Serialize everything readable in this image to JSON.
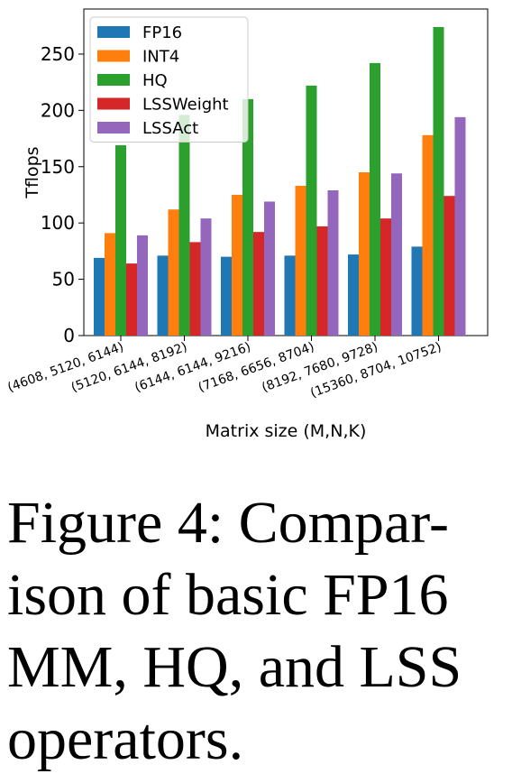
{
  "chart_data": {
    "type": "bar",
    "title": "",
    "xlabel": "Matrix size (M,N,K)",
    "ylabel": "Tflops",
    "ylim": [
      0,
      290
    ],
    "yticks": [
      0,
      50,
      100,
      150,
      200,
      250
    ],
    "grid": false,
    "legend_position": "top-left",
    "categories": [
      "(4608, 5120, 6144)",
      "(5120, 6144, 8192)",
      "(6144, 6144, 9216)",
      "(7168, 6656, 8704)",
      "(8192, 7680, 9728)",
      "(15360, 8704, 10752)"
    ],
    "series": [
      {
        "name": "FP16",
        "color": "#1f77b4",
        "values": [
          69,
          71,
          70,
          71,
          72,
          79
        ]
      },
      {
        "name": "INT4",
        "color": "#ff7f0e",
        "values": [
          91,
          112,
          125,
          133,
          145,
          178
        ]
      },
      {
        "name": "HQ",
        "color": "#2ca02c",
        "values": [
          169,
          196,
          210,
          222,
          242,
          274
        ]
      },
      {
        "name": "LSSWeight",
        "color": "#d62728",
        "values": [
          64,
          83,
          92,
          97,
          104,
          124
        ]
      },
      {
        "name": "LSSAct",
        "color": "#9467bd",
        "values": [
          89,
          104,
          119,
          129,
          144,
          194
        ]
      }
    ]
  },
  "caption": {
    "text": "Figure 4: Compar-\nison of basic FP16\nMM, HQ, and LSS\noperators."
  }
}
